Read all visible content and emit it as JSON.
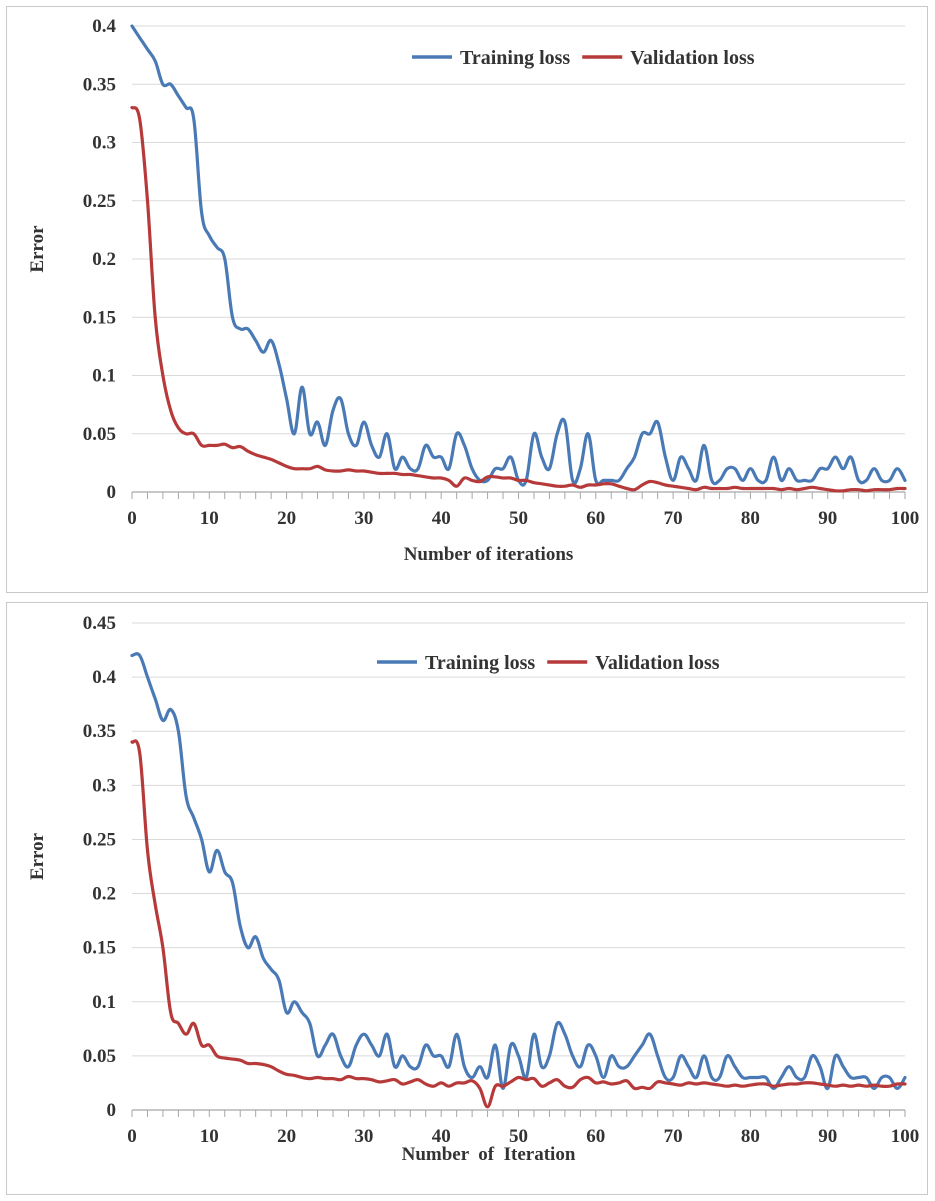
{
  "chart_data": [
    {
      "type": "line",
      "title": "",
      "xlabel": "Number of iterations",
      "ylabel": "Error",
      "xlim": [
        0,
        100
      ],
      "ylim": [
        0,
        0.4
      ],
      "x_ticks": [
        "0",
        "10",
        "20",
        "30",
        "40",
        "50",
        "60",
        "70",
        "80",
        "90",
        "100"
      ],
      "y_ticks": [
        "0",
        "0.05",
        "0.1",
        "0.15",
        "0.2",
        "0.25",
        "0.3",
        "0.35",
        "0.4"
      ],
      "legend": "top-right",
      "series": [
        {
          "name": "Training loss",
          "color": "#4a7ab5",
          "x": [
            0,
            1,
            2,
            3,
            4,
            5,
            6,
            7,
            8,
            9,
            10,
            11,
            12,
            13,
            14,
            15,
            16,
            17,
            18,
            19,
            20,
            21,
            22,
            23,
            24,
            25,
            26,
            27,
            28,
            29,
            30,
            31,
            32,
            33,
            34,
            35,
            36,
            37,
            38,
            39,
            40,
            41,
            42,
            43,
            44,
            45,
            46,
            47,
            48,
            49,
            50,
            51,
            52,
            53,
            54,
            55,
            56,
            57,
            58,
            59,
            60,
            61,
            62,
            63,
            64,
            65,
            66,
            67,
            68,
            69,
            70,
            71,
            72,
            73,
            74,
            75,
            76,
            77,
            78,
            79,
            80,
            81,
            82,
            83,
            84,
            85,
            86,
            87,
            88,
            89,
            90,
            91,
            92,
            93,
            94,
            95,
            96,
            97,
            98,
            99,
            100
          ],
          "y": [
            0.4,
            0.39,
            0.38,
            0.37,
            0.35,
            0.35,
            0.34,
            0.33,
            0.32,
            0.24,
            0.22,
            0.21,
            0.2,
            0.15,
            0.14,
            0.14,
            0.13,
            0.12,
            0.13,
            0.11,
            0.08,
            0.05,
            0.09,
            0.05,
            0.06,
            0.04,
            0.07,
            0.08,
            0.05,
            0.04,
            0.06,
            0.04,
            0.03,
            0.05,
            0.02,
            0.03,
            0.02,
            0.02,
            0.04,
            0.03,
            0.03,
            0.02,
            0.05,
            0.04,
            0.02,
            0.01,
            0.01,
            0.02,
            0.02,
            0.03,
            0.01,
            0.01,
            0.05,
            0.03,
            0.02,
            0.05,
            0.06,
            0.01,
            0.02,
            0.05,
            0.01,
            0.01,
            0.01,
            0.01,
            0.02,
            0.03,
            0.05,
            0.05,
            0.06,
            0.03,
            0.01,
            0.03,
            0.02,
            0.01,
            0.04,
            0.01,
            0.01,
            0.02,
            0.02,
            0.01,
            0.02,
            0.01,
            0.01,
            0.03,
            0.01,
            0.02,
            0.01,
            0.01,
            0.01,
            0.02,
            0.02,
            0.03,
            0.02,
            0.03,
            0.01,
            0.01,
            0.02,
            0.01,
            0.01,
            0.02,
            0.01
          ]
        },
        {
          "name": "Validation loss",
          "color": "#b73a3a",
          "x": [
            0,
            1,
            2,
            3,
            4,
            5,
            6,
            7,
            8,
            9,
            10,
            11,
            12,
            13,
            14,
            15,
            16,
            17,
            18,
            19,
            20,
            21,
            22,
            23,
            24,
            25,
            26,
            27,
            28,
            29,
            30,
            31,
            32,
            33,
            34,
            35,
            36,
            37,
            38,
            39,
            40,
            41,
            42,
            43,
            44,
            45,
            46,
            47,
            48,
            49,
            50,
            51,
            52,
            53,
            54,
            55,
            56,
            57,
            58,
            59,
            60,
            61,
            62,
            63,
            64,
            65,
            66,
            67,
            68,
            69,
            70,
            71,
            72,
            73,
            74,
            75,
            76,
            77,
            78,
            79,
            80,
            81,
            82,
            83,
            84,
            85,
            86,
            87,
            88,
            89,
            90,
            91,
            92,
            93,
            94,
            95,
            96,
            97,
            98,
            99,
            100
          ],
          "y": [
            0.33,
            0.32,
            0.25,
            0.15,
            0.1,
            0.07,
            0.055,
            0.05,
            0.05,
            0.04,
            0.04,
            0.04,
            0.041,
            0.038,
            0.039,
            0.035,
            0.032,
            0.03,
            0.028,
            0.025,
            0.022,
            0.02,
            0.02,
            0.02,
            0.022,
            0.019,
            0.018,
            0.018,
            0.019,
            0.018,
            0.018,
            0.017,
            0.016,
            0.016,
            0.016,
            0.015,
            0.015,
            0.014,
            0.013,
            0.012,
            0.012,
            0.01,
            0.005,
            0.012,
            0.01,
            0.009,
            0.013,
            0.013,
            0.012,
            0.012,
            0.01,
            0.01,
            0.008,
            0.007,
            0.006,
            0.005,
            0.005,
            0.006,
            0.004,
            0.006,
            0.006,
            0.007,
            0.007,
            0.005,
            0.003,
            0.002,
            0.006,
            0.009,
            0.008,
            0.006,
            0.005,
            0.004,
            0.003,
            0.002,
            0.004,
            0.003,
            0.003,
            0.003,
            0.004,
            0.003,
            0.003,
            0.003,
            0.003,
            0.003,
            0.002,
            0.003,
            0.002,
            0.003,
            0.004,
            0.003,
            0.002,
            0.001,
            0.001,
            0.002,
            0.002,
            0.001,
            0.002,
            0.002,
            0.002,
            0.003,
            0.003
          ]
        }
      ]
    },
    {
      "type": "line",
      "title": "",
      "xlabel": "Number  of  Iteration",
      "ylabel": "Error",
      "xlim": [
        0,
        100
      ],
      "ylim": [
        0,
        0.45
      ],
      "x_ticks": [
        "0",
        "10",
        "20",
        "30",
        "40",
        "50",
        "60",
        "70",
        "80",
        "90",
        "100"
      ],
      "y_ticks": [
        "0",
        "0.05",
        "0.1",
        "0.15",
        "0.2",
        "0.25",
        "0.3",
        "0.35",
        "0.4",
        "0.45"
      ],
      "legend": "top-right",
      "series": [
        {
          "name": "Training loss",
          "color": "#4a7ab5",
          "x": [
            0,
            1,
            2,
            3,
            4,
            5,
            6,
            7,
            8,
            9,
            10,
            11,
            12,
            13,
            14,
            15,
            16,
            17,
            18,
            19,
            20,
            21,
            22,
            23,
            24,
            25,
            26,
            27,
            28,
            29,
            30,
            31,
            32,
            33,
            34,
            35,
            36,
            37,
            38,
            39,
            40,
            41,
            42,
            43,
            44,
            45,
            46,
            47,
            48,
            49,
            50,
            51,
            52,
            53,
            54,
            55,
            56,
            57,
            58,
            59,
            60,
            61,
            62,
            63,
            64,
            65,
            66,
            67,
            68,
            69,
            70,
            71,
            72,
            73,
            74,
            75,
            76,
            77,
            78,
            79,
            80,
            81,
            82,
            83,
            84,
            85,
            86,
            87,
            88,
            89,
            90,
            91,
            92,
            93,
            94,
            95,
            96,
            97,
            98,
            99,
            100
          ],
          "y": [
            0.42,
            0.42,
            0.4,
            0.38,
            0.36,
            0.37,
            0.35,
            0.29,
            0.27,
            0.25,
            0.22,
            0.24,
            0.22,
            0.21,
            0.17,
            0.15,
            0.16,
            0.14,
            0.13,
            0.12,
            0.09,
            0.1,
            0.09,
            0.08,
            0.05,
            0.06,
            0.07,
            0.05,
            0.04,
            0.06,
            0.07,
            0.06,
            0.05,
            0.07,
            0.04,
            0.05,
            0.04,
            0.04,
            0.06,
            0.05,
            0.05,
            0.04,
            0.07,
            0.04,
            0.03,
            0.04,
            0.03,
            0.06,
            0.02,
            0.06,
            0.05,
            0.03,
            0.07,
            0.04,
            0.05,
            0.08,
            0.07,
            0.05,
            0.04,
            0.06,
            0.05,
            0.03,
            0.05,
            0.04,
            0.04,
            0.05,
            0.06,
            0.07,
            0.05,
            0.03,
            0.03,
            0.05,
            0.04,
            0.03,
            0.05,
            0.03,
            0.03,
            0.05,
            0.04,
            0.03,
            0.03,
            0.03,
            0.03,
            0.02,
            0.03,
            0.04,
            0.03,
            0.03,
            0.05,
            0.04,
            0.02,
            0.05,
            0.04,
            0.03,
            0.03,
            0.03,
            0.02,
            0.03,
            0.03,
            0.02,
            0.03
          ]
        },
        {
          "name": "Validation loss",
          "color": "#b73a3a",
          "x": [
            0,
            1,
            2,
            3,
            4,
            5,
            6,
            7,
            8,
            9,
            10,
            11,
            12,
            13,
            14,
            15,
            16,
            17,
            18,
            19,
            20,
            21,
            22,
            23,
            24,
            25,
            26,
            27,
            28,
            29,
            30,
            31,
            32,
            33,
            34,
            35,
            36,
            37,
            38,
            39,
            40,
            41,
            42,
            43,
            44,
            45,
            46,
            47,
            48,
            49,
            50,
            51,
            52,
            53,
            54,
            55,
            56,
            57,
            58,
            59,
            60,
            61,
            62,
            63,
            64,
            65,
            66,
            67,
            68,
            69,
            70,
            71,
            72,
            73,
            74,
            75,
            76,
            77,
            78,
            79,
            80,
            81,
            82,
            83,
            84,
            85,
            86,
            87,
            88,
            89,
            90,
            91,
            92,
            93,
            94,
            95,
            96,
            97,
            98,
            99,
            100
          ],
          "y": [
            0.34,
            0.33,
            0.24,
            0.19,
            0.15,
            0.09,
            0.08,
            0.07,
            0.08,
            0.06,
            0.06,
            0.05,
            0.048,
            0.047,
            0.046,
            0.043,
            0.043,
            0.042,
            0.04,
            0.036,
            0.033,
            0.032,
            0.03,
            0.029,
            0.03,
            0.029,
            0.029,
            0.028,
            0.031,
            0.029,
            0.029,
            0.028,
            0.026,
            0.027,
            0.028,
            0.024,
            0.026,
            0.028,
            0.024,
            0.022,
            0.025,
            0.022,
            0.025,
            0.025,
            0.027,
            0.02,
            0.003,
            0.022,
            0.022,
            0.026,
            0.03,
            0.028,
            0.029,
            0.022,
            0.025,
            0.028,
            0.022,
            0.021,
            0.028,
            0.03,
            0.025,
            0.026,
            0.024,
            0.025,
            0.027,
            0.02,
            0.021,
            0.02,
            0.026,
            0.025,
            0.024,
            0.023,
            0.025,
            0.024,
            0.025,
            0.024,
            0.023,
            0.022,
            0.023,
            0.022,
            0.023,
            0.024,
            0.024,
            0.022,
            0.023,
            0.024,
            0.024,
            0.025,
            0.025,
            0.024,
            0.023,
            0.022,
            0.023,
            0.022,
            0.023,
            0.022,
            0.023,
            0.022,
            0.022,
            0.024,
            0.024
          ]
        }
      ]
    }
  ]
}
